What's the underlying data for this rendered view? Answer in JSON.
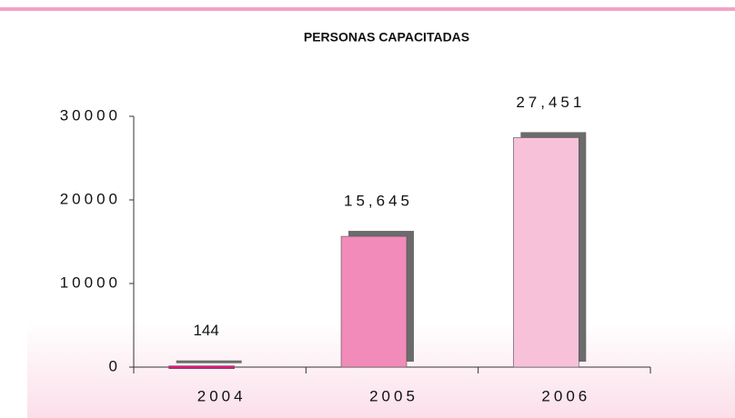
{
  "chart_data": {
    "type": "bar",
    "title": "PERSONAS CAPACITADAS",
    "categories": [
      "2004",
      "2005",
      "2006"
    ],
    "values": [
      144,
      15645,
      27451
    ],
    "value_labels": [
      "144",
      "15,645",
      "27,451"
    ],
    "colors": [
      "#e0197f",
      "#f28bb9",
      "#f7c1da"
    ],
    "shadow_color": "#6b6b6b",
    "ylim": [
      0,
      30000
    ],
    "yticks": [
      0,
      10000,
      20000,
      30000
    ],
    "grid": false
  }
}
